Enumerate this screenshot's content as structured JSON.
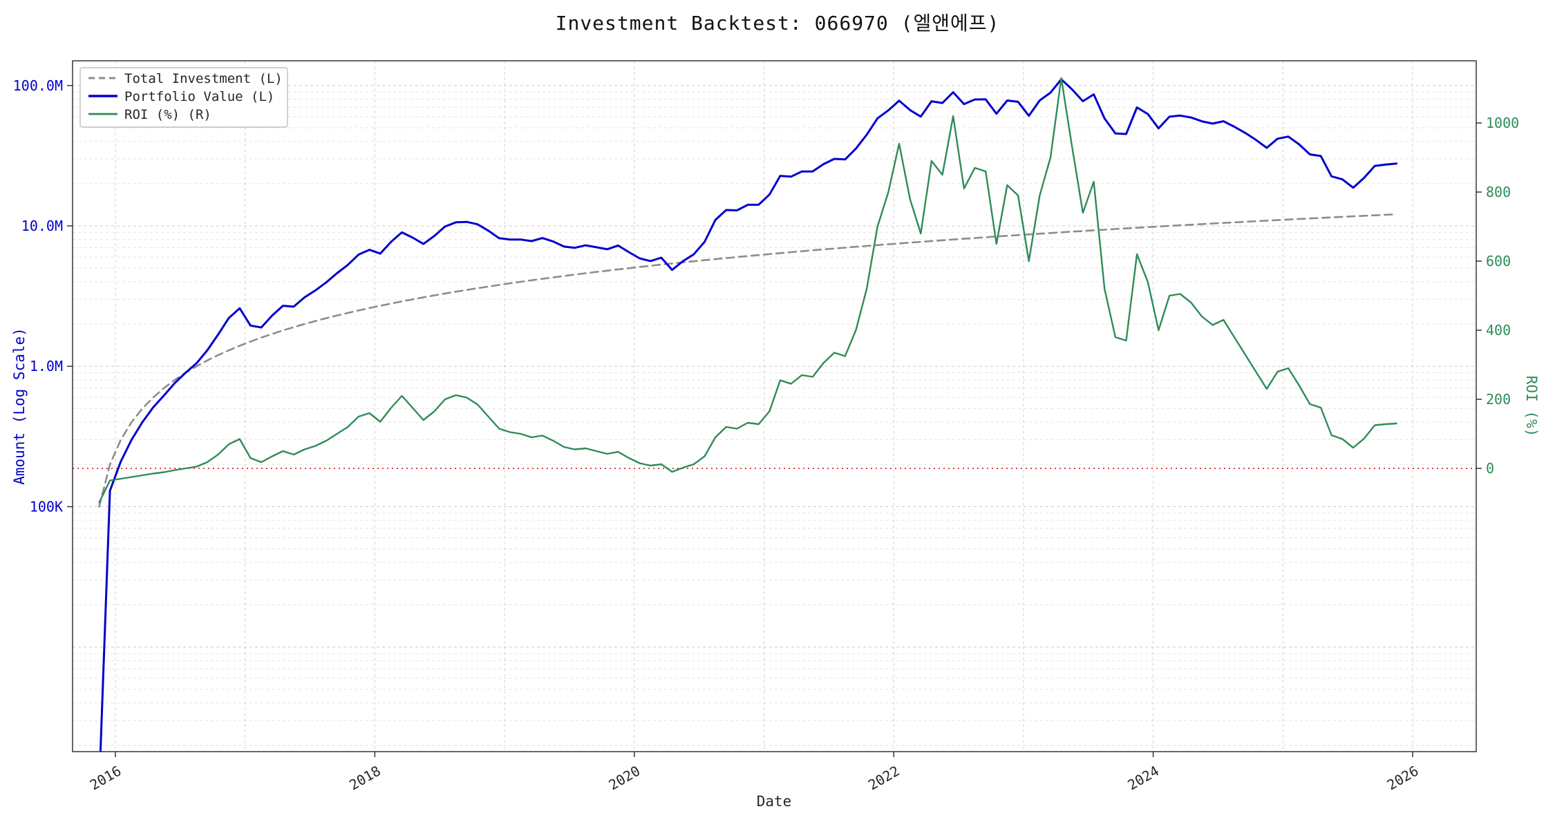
{
  "page": {
    "background": "#ffffff"
  },
  "chart_data": {
    "type": "line",
    "title": "Investment Backtest: 066970 (엘앤에프)",
    "xlabel": "Date",
    "ylabel_left": "Amount (Log Scale)",
    "ylabel_right": "ROI (%)",
    "xlim": [
      2015.67,
      2026.49
    ],
    "x_ticks": [
      2016,
      2018,
      2020,
      2022,
      2024,
      2026
    ],
    "x_grid_interval_years": 1,
    "ylim_left": [
      0.0018,
      150
    ],
    "left_axis_unit": "KRW, millions, log scale",
    "left_ticks": [
      {
        "value": 0.1,
        "label": "100K"
      },
      {
        "value": 1,
        "label": "1.0M"
      },
      {
        "value": 10,
        "label": "10.0M"
      },
      {
        "value": 100,
        "label": "100.0M"
      }
    ],
    "ylim_right": [
      -820,
      1180
    ],
    "right_ticks": [
      {
        "value": 0,
        "label": "0"
      },
      {
        "value": 200,
        "label": "200"
      },
      {
        "value": 400,
        "label": "400"
      },
      {
        "value": 600,
        "label": "600"
      },
      {
        "value": 800,
        "label": "800"
      },
      {
        "value": 1000,
        "label": "1000"
      }
    ],
    "zero_line": {
      "axis": "right",
      "value": 0,
      "color": "#d40000",
      "style": "dotted"
    },
    "grid": {
      "color": "#c3c3c3",
      "style": "dashed",
      "on": true
    },
    "legend": {
      "position": "upper-left"
    },
    "axis_text_colors": {
      "left": "#0000cd",
      "right": "#2e8b57",
      "x": "#262626"
    },
    "months": [
      "2015-11",
      "2015-12",
      "2016-01",
      "2016-02",
      "2016-03",
      "2016-04",
      "2016-05",
      "2016-06",
      "2016-07",
      "2016-08",
      "2016-09",
      "2016-10",
      "2016-11",
      "2016-12",
      "2017-01",
      "2017-02",
      "2017-03",
      "2017-04",
      "2017-05",
      "2017-06",
      "2017-07",
      "2017-08",
      "2017-09",
      "2017-10",
      "2017-11",
      "2017-12",
      "2018-01",
      "2018-02",
      "2018-03",
      "2018-04",
      "2018-05",
      "2018-06",
      "2018-07",
      "2018-08",
      "2018-09",
      "2018-10",
      "2018-11",
      "2018-12",
      "2019-01",
      "2019-02",
      "2019-03",
      "2019-04",
      "2019-05",
      "2019-06",
      "2019-07",
      "2019-08",
      "2019-09",
      "2019-10",
      "2019-11",
      "2019-12",
      "2020-01",
      "2020-02",
      "2020-03",
      "2020-04",
      "2020-05",
      "2020-06",
      "2020-07",
      "2020-08",
      "2020-09",
      "2020-10",
      "2020-11",
      "2020-12",
      "2021-01",
      "2021-02",
      "2021-03",
      "2021-04",
      "2021-05",
      "2021-06",
      "2021-07",
      "2021-08",
      "2021-09",
      "2021-10",
      "2021-11",
      "2021-12",
      "2022-01",
      "2022-02",
      "2022-03",
      "2022-04",
      "2022-05",
      "2022-06",
      "2022-07",
      "2022-08",
      "2022-09",
      "2022-10",
      "2022-11",
      "2022-12",
      "2023-01",
      "2023-02",
      "2023-03",
      "2023-04",
      "2023-05",
      "2023-06",
      "2023-07",
      "2023-08",
      "2023-09",
      "2023-10",
      "2023-11",
      "2023-12",
      "2024-01",
      "2024-02",
      "2024-03",
      "2024-04",
      "2024-05",
      "2024-06",
      "2024-07",
      "2024-08",
      "2024-09",
      "2024-10",
      "2024-11",
      "2024-12",
      "2025-01",
      "2025-02",
      "2025-03",
      "2025-04",
      "2025-05",
      "2025-06",
      "2025-07",
      "2025-08",
      "2025-09",
      "2025-10",
      "2025-11"
    ],
    "series": [
      {
        "key": "total-investment",
        "name": "Total Investment (L)",
        "axis": "left",
        "color": "#8c8c8c",
        "dash": "11 7",
        "width": 2.6,
        "values": [
          0.1,
          0.2,
          0.3,
          0.4,
          0.5,
          0.6,
          0.7,
          0.8,
          0.9,
          1.0,
          1.1,
          1.2,
          1.3,
          1.4,
          1.5,
          1.6,
          1.7,
          1.8,
          1.9,
          2.0,
          2.1,
          2.2,
          2.3,
          2.4,
          2.5,
          2.6,
          2.7,
          2.8,
          2.9,
          3.0,
          3.1,
          3.2,
          3.3,
          3.4,
          3.5,
          3.6,
          3.7,
          3.8,
          3.9,
          4.0,
          4.1,
          4.2,
          4.3,
          4.4,
          4.5,
          4.6,
          4.7,
          4.8,
          4.9,
          5.0,
          5.1,
          5.2,
          5.3,
          5.4,
          5.5,
          5.6,
          5.7,
          5.8,
          5.9,
          6.0,
          6.1,
          6.2,
          6.3,
          6.4,
          6.5,
          6.6,
          6.7,
          6.8,
          6.9,
          7.0,
          7.1,
          7.2,
          7.3,
          7.4,
          7.5,
          7.6,
          7.7,
          7.8,
          7.9,
          8.0,
          8.1,
          8.2,
          8.3,
          8.4,
          8.5,
          8.6,
          8.7,
          8.8,
          8.9,
          9.0,
          9.1,
          9.2,
          9.3,
          9.4,
          9.5,
          9.6,
          9.7,
          9.8,
          9.9,
          10.0,
          10.1,
          10.2,
          10.3,
          10.4,
          10.5,
          10.6,
          10.7,
          10.8,
          10.9,
          11.0,
          11.1,
          11.2,
          11.3,
          11.4,
          11.5,
          11.6,
          11.7,
          11.8,
          11.9,
          12.0,
          12.1
        ]
      },
      {
        "key": "portfolio-value",
        "name": "Portfolio Value (L)",
        "axis": "left",
        "color": "#0000cd",
        "dash": "",
        "width": 3,
        "values": [
          0.001,
          0.13,
          0.21,
          0.3,
          0.4,
          0.51,
          0.62,
          0.76,
          0.9,
          1.05,
          1.3,
          1.68,
          2.21,
          2.59,
          1.95,
          1.89,
          2.3,
          2.7,
          2.66,
          3.1,
          3.47,
          3.96,
          4.6,
          5.28,
          6.25,
          6.76,
          6.35,
          7.7,
          8.99,
          8.25,
          7.44,
          8.48,
          9.9,
          10.61,
          10.68,
          10.26,
          9.25,
          8.17,
          8.0,
          8.0,
          7.79,
          8.19,
          7.74,
          7.13,
          6.98,
          7.27,
          7.05,
          6.82,
          7.25,
          6.5,
          5.87,
          5.62,
          5.94,
          4.86,
          5.61,
          6.27,
          7.7,
          11.02,
          12.98,
          12.9,
          14.15,
          14.14,
          16.7,
          22.72,
          22.43,
          24.42,
          24.46,
          27.54,
          30.02,
          29.75,
          35.5,
          44.64,
          58.4,
          66.6,
          78.0,
          66.88,
          60.06,
          77.22,
          75.05,
          89.6,
          73.71,
          79.54,
          79.68,
          63.0,
          78.2,
          76.54,
          60.9,
          78.32,
          89.0,
          110.7,
          93.73,
          77.28,
          86.49,
          58.28,
          45.6,
          45.12,
          69.84,
          62.72,
          49.5,
          60.0,
          61.11,
          59.16,
          55.62,
          53.56,
          55.65,
          50.88,
          46.01,
          41.04,
          35.97,
          41.8,
          43.29,
          38.08,
          32.32,
          31.46,
          22.54,
          21.46,
          18.72,
          21.95,
          26.78,
          27.36,
          27.83
        ]
      },
      {
        "key": "roi",
        "name": "ROI (%) (R)",
        "axis": "right",
        "color": "#2e8b57",
        "dash": "",
        "width": 2.4,
        "values": [
          -99,
          -35,
          -30,
          -25,
          -20,
          -15,
          -11,
          -5,
          0,
          5,
          18,
          40,
          70,
          85,
          30,
          18,
          35,
          50,
          40,
          55,
          65,
          80,
          100,
          120,
          150,
          160,
          135,
          175,
          210,
          175,
          140,
          165,
          200,
          212,
          205,
          185,
          150,
          115,
          105,
          100,
          90,
          95,
          80,
          62,
          55,
          58,
          50,
          42,
          48,
          30,
          15,
          8,
          12,
          -10,
          2,
          12,
          35,
          90,
          120,
          115,
          132,
          128,
          165,
          255,
          245,
          270,
          265,
          305,
          335,
          325,
          400,
          520,
          700,
          800,
          940,
          780,
          680,
          890,
          850,
          1020,
          810,
          870,
          860,
          650,
          820,
          790,
          600,
          790,
          900,
          1130,
          930,
          740,
          830,
          520,
          380,
          370,
          620,
          540,
          400,
          500,
          505,
          480,
          440,
          415,
          430,
          380,
          330,
          280,
          230,
          280,
          290,
          240,
          186,
          176,
          96,
          85,
          60,
          86,
          125,
          128,
          130
        ]
      }
    ]
  }
}
